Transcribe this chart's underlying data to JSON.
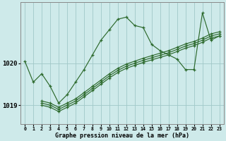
{
  "background_color": "#ceeaea",
  "grid_color": "#a0c8c8",
  "line_color": "#2d6a2d",
  "xlabel": "Graphe pression niveau de la mer (hPa)",
  "yticks": [
    1019,
    1020
  ],
  "xlim": [
    -0.5,
    23.5
  ],
  "ylim": [
    1018.55,
    1021.45
  ],
  "series": [
    {
      "x": [
        0,
        1,
        2,
        3,
        4,
        5,
        6,
        7,
        8,
        9,
        10,
        11,
        12,
        13,
        14,
        15,
        16,
        17,
        18,
        19,
        20,
        21,
        22,
        23
      ],
      "y": [
        1020.05,
        1019.55,
        1019.75,
        1019.45,
        1019.05,
        1019.25,
        1019.55,
        1019.85,
        1020.2,
        1020.55,
        1020.8,
        1021.05,
        1021.1,
        1020.9,
        1020.85,
        1020.45,
        1020.3,
        1020.2,
        1020.1,
        1019.85,
        1019.85,
        1021.2,
        1020.55,
        1020.65
      ]
    },
    {
      "x": [
        2,
        3,
        4,
        5,
        6,
        7,
        8,
        9,
        10,
        11,
        12,
        13,
        14,
        15,
        16,
        17,
        18,
        19,
        20,
        21,
        22,
        23
      ],
      "y": [
        1019.0,
        1018.95,
        1018.85,
        1018.95,
        1019.05,
        1019.2,
        1019.35,
        1019.5,
        1019.65,
        1019.78,
        1019.88,
        1019.95,
        1020.02,
        1020.08,
        1020.14,
        1020.2,
        1020.28,
        1020.36,
        1020.42,
        1020.5,
        1020.6,
        1020.65
      ]
    },
    {
      "x": [
        2,
        3,
        4,
        5,
        6,
        7,
        8,
        9,
        10,
        11,
        12,
        13,
        14,
        15,
        16,
        17,
        18,
        19,
        20,
        21,
        22,
        23
      ],
      "y": [
        1019.05,
        1019.0,
        1018.9,
        1019.0,
        1019.1,
        1019.25,
        1019.4,
        1019.55,
        1019.7,
        1019.83,
        1019.93,
        1020.0,
        1020.07,
        1020.13,
        1020.19,
        1020.25,
        1020.33,
        1020.41,
        1020.47,
        1020.55,
        1020.65,
        1020.7
      ]
    },
    {
      "x": [
        2,
        3,
        4,
        5,
        6,
        7,
        8,
        9,
        10,
        11,
        12,
        13,
        14,
        15,
        16,
        17,
        18,
        19,
        20,
        21,
        22,
        23
      ],
      "y": [
        1019.1,
        1019.05,
        1018.95,
        1019.05,
        1019.15,
        1019.3,
        1019.45,
        1019.6,
        1019.75,
        1019.88,
        1019.98,
        1020.05,
        1020.12,
        1020.18,
        1020.24,
        1020.3,
        1020.38,
        1020.46,
        1020.52,
        1020.6,
        1020.7,
        1020.75
      ]
    }
  ]
}
